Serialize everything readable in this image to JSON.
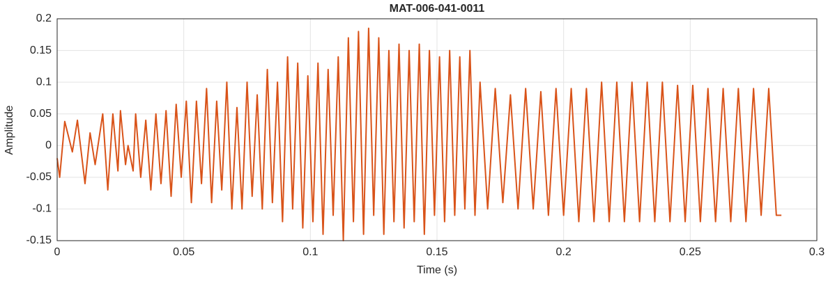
{
  "chart_data": {
    "type": "line",
    "title": "MAT-006-041-0011",
    "xlabel": "Time (s)",
    "ylabel": "Amplitude",
    "xlim": [
      0,
      0.3
    ],
    "ylim": [
      -0.15,
      0.2
    ],
    "xticks": [
      0,
      0.05,
      0.1,
      0.15,
      0.2,
      0.25,
      0.3
    ],
    "yticks": [
      -0.15,
      -0.1,
      -0.05,
      0,
      0.05,
      0.1,
      0.15,
      0.2
    ],
    "grid": true,
    "x": [
      0,
      0.001,
      0.003,
      0.006,
      0.008,
      0.011,
      0.013,
      0.015,
      0.018,
      0.02,
      0.022,
      0.024,
      0.025,
      0.027,
      0.028,
      0.03,
      0.031,
      0.033,
      0.035,
      0.037,
      0.039,
      0.041,
      0.043,
      0.045,
      0.047,
      0.049,
      0.051,
      0.053,
      0.055,
      0.057,
      0.059,
      0.061,
      0.063,
      0.065,
      0.067,
      0.069,
      0.071,
      0.073,
      0.075,
      0.077,
      0.079,
      0.081,
      0.083,
      0.085,
      0.087,
      0.089,
      0.091,
      0.093,
      0.095,
      0.097,
      0.099,
      0.101,
      0.103,
      0.105,
      0.107,
      0.109,
      0.111,
      0.113,
      0.115,
      0.117,
      0.119,
      0.121,
      0.123,
      0.125,
      0.127,
      0.129,
      0.131,
      0.133,
      0.135,
      0.137,
      0.139,
      0.141,
      0.143,
      0.145,
      0.147,
      0.149,
      0.151,
      0.153,
      0.155,
      0.157,
      0.159,
      0.161,
      0.163,
      0.165,
      0.167,
      0.17,
      0.173,
      0.176,
      0.179,
      0.182,
      0.185,
      0.188,
      0.191,
      0.194,
      0.197,
      0.2,
      0.203,
      0.206,
      0.209,
      0.212,
      0.215,
      0.218,
      0.221,
      0.224,
      0.227,
      0.23,
      0.233,
      0.236,
      0.239,
      0.242,
      0.245,
      0.248,
      0.251,
      0.254,
      0.257,
      0.26,
      0.263,
      0.266,
      0.269,
      0.272,
      0.275,
      0.278,
      0.281,
      0.284,
      0.286
    ],
    "series": [
      {
        "name": "Amplitude",
        "color": "#d95319",
        "values": [
          -0.02,
          -0.05,
          0.038,
          -0.01,
          0.04,
          -0.06,
          0.02,
          -0.03,
          0.05,
          -0.07,
          0.05,
          -0.04,
          0.055,
          -0.03,
          0.0,
          -0.04,
          0.05,
          -0.05,
          0.04,
          -0.07,
          0.05,
          -0.06,
          0.055,
          -0.08,
          0.065,
          -0.05,
          0.07,
          -0.09,
          0.07,
          -0.06,
          0.09,
          -0.09,
          0.07,
          -0.07,
          0.1,
          -0.1,
          0.06,
          -0.1,
          0.1,
          -0.08,
          0.08,
          -0.1,
          0.12,
          -0.09,
          0.1,
          -0.12,
          0.14,
          -0.1,
          0.13,
          -0.13,
          0.11,
          -0.12,
          0.13,
          -0.14,
          0.12,
          -0.11,
          0.14,
          -0.15,
          0.17,
          -0.12,
          0.18,
          -0.14,
          0.185,
          -0.11,
          0.17,
          -0.14,
          0.15,
          -0.12,
          0.16,
          -0.13,
          0.15,
          -0.12,
          0.16,
          -0.14,
          0.15,
          -0.11,
          0.14,
          -0.12,
          0.15,
          -0.11,
          0.14,
          -0.1,
          0.15,
          -0.11,
          0.1,
          -0.1,
          0.09,
          -0.09,
          0.08,
          -0.1,
          0.09,
          -0.1,
          0.085,
          -0.11,
          0.09,
          -0.11,
          0.09,
          -0.12,
          0.09,
          -0.12,
          0.1,
          -0.12,
          0.1,
          -0.12,
          0.1,
          -0.12,
          0.1,
          -0.12,
          0.1,
          -0.12,
          0.095,
          -0.12,
          0.095,
          -0.12,
          0.09,
          -0.12,
          0.09,
          -0.12,
          0.09,
          -0.12,
          0.09,
          -0.11,
          0.09,
          -0.11,
          -0.11
        ]
      }
    ]
  }
}
